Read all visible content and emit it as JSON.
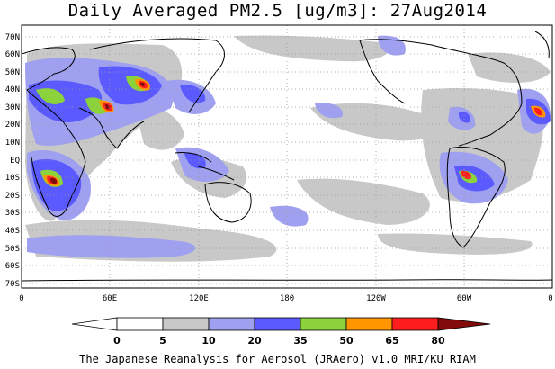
{
  "title": "Daily Averaged PM2.5 [ug/m3]: 27Aug2014",
  "footer": "The Japanese Reanalysis for Aerosol (JRAero) v1.0 MRI/KU_RIAM",
  "lat_labels": [
    "70N",
    "60N",
    "50N",
    "40N",
    "30N",
    "20N",
    "10N",
    "EQ",
    "10S",
    "20S",
    "30S",
    "40S",
    "50S",
    "60S",
    "70S"
  ],
  "lon_labels": [
    "0",
    "60E",
    "120E",
    "180",
    "120W",
    "60W",
    "0"
  ],
  "colorbar": {
    "labels": [
      "0",
      "5",
      "10",
      "20",
      "35",
      "50",
      "65",
      "80"
    ],
    "colors": [
      "#ffffff",
      "#c8c8c8",
      "#a0a0f0",
      "#5a5aff",
      "#8cd23c",
      "#ff9600",
      "#ff1e1e",
      "#820a0a"
    ]
  },
  "map_colors": {
    "ocean": "#ffffff",
    "coast": "#000000",
    "grid": "#999999"
  }
}
